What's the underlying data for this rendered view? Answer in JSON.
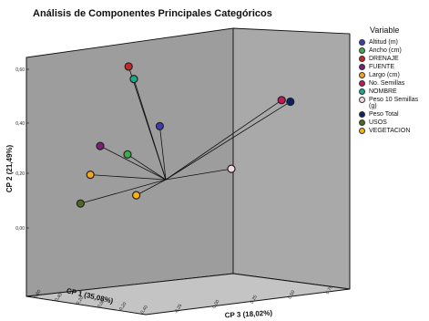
{
  "chart_data": {
    "type": "scatter",
    "title": "Análisis de Componentes Principales Categóricos",
    "xlabel": "CP 1 (35,08%)",
    "ylabel": "CP 2 (21,49%)",
    "zlabel": "CP 3 (18,02%)",
    "x_ticks": [
      "-0,40",
      "-0,20",
      "0,00",
      "0,20",
      "0,40",
      "0,60"
    ],
    "y_ticks": [
      "0,00",
      "0,20",
      "0,40",
      "0,60"
    ],
    "z_ticks": [
      "-0,25",
      "0,00",
      "0,25",
      "0,50",
      "0,75"
    ],
    "legend_title": "Variable",
    "legend_position": "right",
    "grid": false,
    "series": [
      {
        "name": "Altitud (m)",
        "color": "#3a3fb0",
        "x": 0.15,
        "y": 0.23,
        "z": 0.05
      },
      {
        "name": "Ancho (cm)",
        "color": "#3fae49",
        "x": 0.3,
        "y": 0.16,
        "z": -0.05
      },
      {
        "name": "DRENAJE",
        "color": "#c62828",
        "x": 0.2,
        "y": 0.48,
        "z": -0.1
      },
      {
        "name": "FUENTE",
        "color": "#7b1f7a",
        "x": 0.4,
        "y": 0.22,
        "z": -0.15
      },
      {
        "name": "Largo (cm)",
        "color": "#f5a623",
        "x": 0.5,
        "y": 0.13,
        "z": -0.15
      },
      {
        "name": "No. Semillas",
        "color": "#c2185b",
        "x": -0.2,
        "y": 0.22,
        "z": 0.55
      },
      {
        "name": "NOMBRE",
        "color": "#1fa88a",
        "x": 0.2,
        "y": 0.43,
        "z": -0.07
      },
      {
        "name": "Peso 10 Semillas\n(g)",
        "color": "#f3d9e3",
        "x": -0.4,
        "y": -0.05,
        "z": 0.15
      },
      {
        "name": "Peso Total",
        "color": "#0b1f6b",
        "x": -0.2,
        "y": 0.21,
        "z": 0.6
      },
      {
        "name": "USOS",
        "color": "#4d6b1e",
        "x": 0.6,
        "y": 0.04,
        "z": -0.15
      },
      {
        "name": "VEGETACION",
        "color": "#ffb300",
        "x": 0.3,
        "y": 0.0,
        "z": 0.0
      }
    ]
  }
}
